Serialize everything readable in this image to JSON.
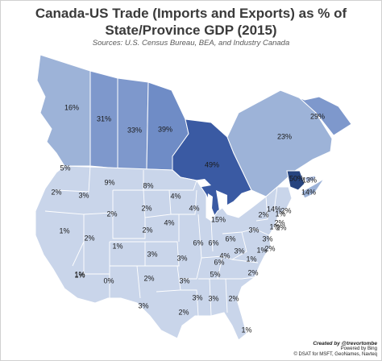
{
  "title_line1": "Canada-US Trade (Imports and Exports) as % of",
  "title_line2": "State/Province GDP (2015)",
  "subtitle": "Sources: U.S. Census Bureau, BEA, and Industry Canada",
  "credit": {
    "created_by": "Created by @trevortombe",
    "powered_by": "Powered by Bing",
    "copyright": "© DSAT for MSFT, GeoNames, Navteq"
  },
  "colors": {
    "bg": "#ffffff",
    "us_fill": "#c9d5ea",
    "us_border": "#ffffff",
    "ca_light": "#9db3d8",
    "ca_mid": "#7e98cc",
    "ca_dark": "#3a5aa3",
    "ca_darkest": "#26447f",
    "water": "#ffffff"
  },
  "regions": [
    {
      "name": "British Columbia",
      "value": "16%"
    },
    {
      "name": "Alberta",
      "value": "31%"
    },
    {
      "name": "Saskatchewan",
      "value": "33%"
    },
    {
      "name": "Manitoba",
      "value": "39%"
    },
    {
      "name": "Ontario",
      "value": "49%"
    },
    {
      "name": "Quebec",
      "value": "23%"
    },
    {
      "name": "Newfoundland and Labrador",
      "value": "29%"
    },
    {
      "name": "New Brunswick",
      "value": "50%"
    },
    {
      "name": "Nova Scotia",
      "value": "14%"
    },
    {
      "name": "Prince Edward Island",
      "value": "13%"
    },
    {
      "name": "Washington",
      "value": "5%"
    },
    {
      "name": "Oregon",
      "value": "2%"
    },
    {
      "name": "Idaho",
      "value": "3%"
    },
    {
      "name": "Montana",
      "value": "9%"
    },
    {
      "name": "North Dakota",
      "value": "8%"
    },
    {
      "name": "Minnesota",
      "value": "4%"
    },
    {
      "name": "Wisconsin",
      "value": "4%"
    },
    {
      "name": "Michigan",
      "value": "15%"
    },
    {
      "name": "South Dakota",
      "value": "2%"
    },
    {
      "name": "Wyoming",
      "value": "2%"
    },
    {
      "name": "Iowa",
      "value": "4%"
    },
    {
      "name": "Nevada",
      "value": "1%"
    },
    {
      "name": "Utah",
      "value": "2%"
    },
    {
      "name": "Colorado",
      "value": "1%"
    },
    {
      "name": "Nebraska",
      "value": "2%"
    },
    {
      "name": "California",
      "value": "1%"
    },
    {
      "name": "Illinois",
      "value": "6%"
    },
    {
      "name": "Indiana",
      "value": "6%"
    },
    {
      "name": "Ohio",
      "value": "6%"
    },
    {
      "name": "Pennsylvania",
      "value": "3%"
    },
    {
      "name": "New York",
      "value": "2%"
    },
    {
      "name": "Vermont",
      "value": "14%"
    },
    {
      "name": "New Hampshire",
      "value": "1%"
    },
    {
      "name": "Maine",
      "value": "2%"
    },
    {
      "name": "Massachusetts",
      "value": "2%"
    },
    {
      "name": "Connecticut",
      "value": "1%"
    },
    {
      "name": "Rhode Island",
      "value": "2%"
    },
    {
      "name": "New Jersey",
      "value": "3%"
    },
    {
      "name": "Delaware",
      "value": "2%"
    },
    {
      "name": "Maryland",
      "value": "1%"
    },
    {
      "name": "West Virginia",
      "value": "3%"
    },
    {
      "name": "Virginia",
      "value": "1%"
    },
    {
      "name": "Kentucky",
      "value": "4%"
    },
    {
      "name": "Missouri",
      "value": "3%"
    },
    {
      "name": "Kansas",
      "value": "3%"
    },
    {
      "name": "Arizona",
      "value": "1%"
    },
    {
      "name": "New Mexico",
      "value": "0%"
    },
    {
      "name": "Oklahoma",
      "value": "2%"
    },
    {
      "name": "Arkansas",
      "value": "3%"
    },
    {
      "name": "Tennessee",
      "value": "6%"
    },
    {
      "name": "North Carolina",
      "value": "2%"
    },
    {
      "name": "South Carolina",
      "value": "5%"
    },
    {
      "name": "Mississippi",
      "value": "3%"
    },
    {
      "name": "Alabama",
      "value": "3%"
    },
    {
      "name": "Georgia",
      "value": "2%"
    },
    {
      "name": "Texas",
      "value": "3%"
    },
    {
      "name": "Louisiana",
      "value": "2%"
    },
    {
      "name": "Florida",
      "value": "1%"
    }
  ]
}
